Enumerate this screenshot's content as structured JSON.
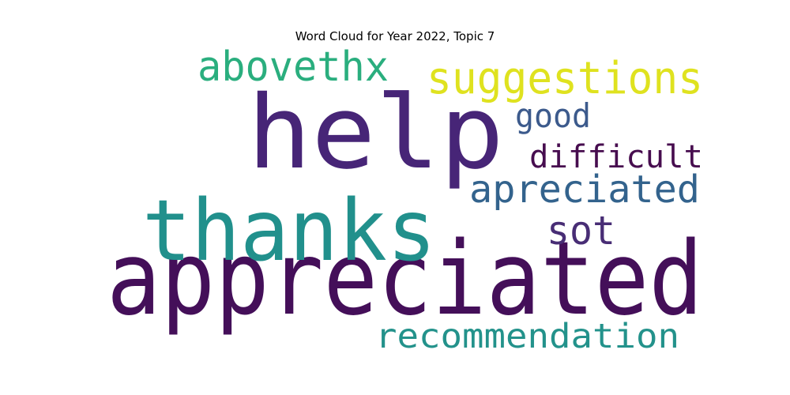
{
  "chart_data": {
    "type": "wordcloud",
    "title": "Word Cloud for Year 2022, Topic 7",
    "colormap": "viridis",
    "background": "#ffffff",
    "words": [
      {
        "text": "appreciated",
        "color": "#440f59"
      },
      {
        "text": "help",
        "color": "#472577"
      },
      {
        "text": "thanks",
        "color": "#21908c"
      },
      {
        "text": "suggestions",
        "color": "#dfe21f"
      },
      {
        "text": "abovethx",
        "color": "#2aae7e"
      },
      {
        "text": "good",
        "color": "#3c5a8c"
      },
      {
        "text": "difficult",
        "color": "#470d4f"
      },
      {
        "text": "apreciated",
        "color": "#33638d"
      },
      {
        "text": "sot",
        "color": "#482d75"
      },
      {
        "text": "recommendation",
        "color": "#23928b"
      }
    ]
  }
}
